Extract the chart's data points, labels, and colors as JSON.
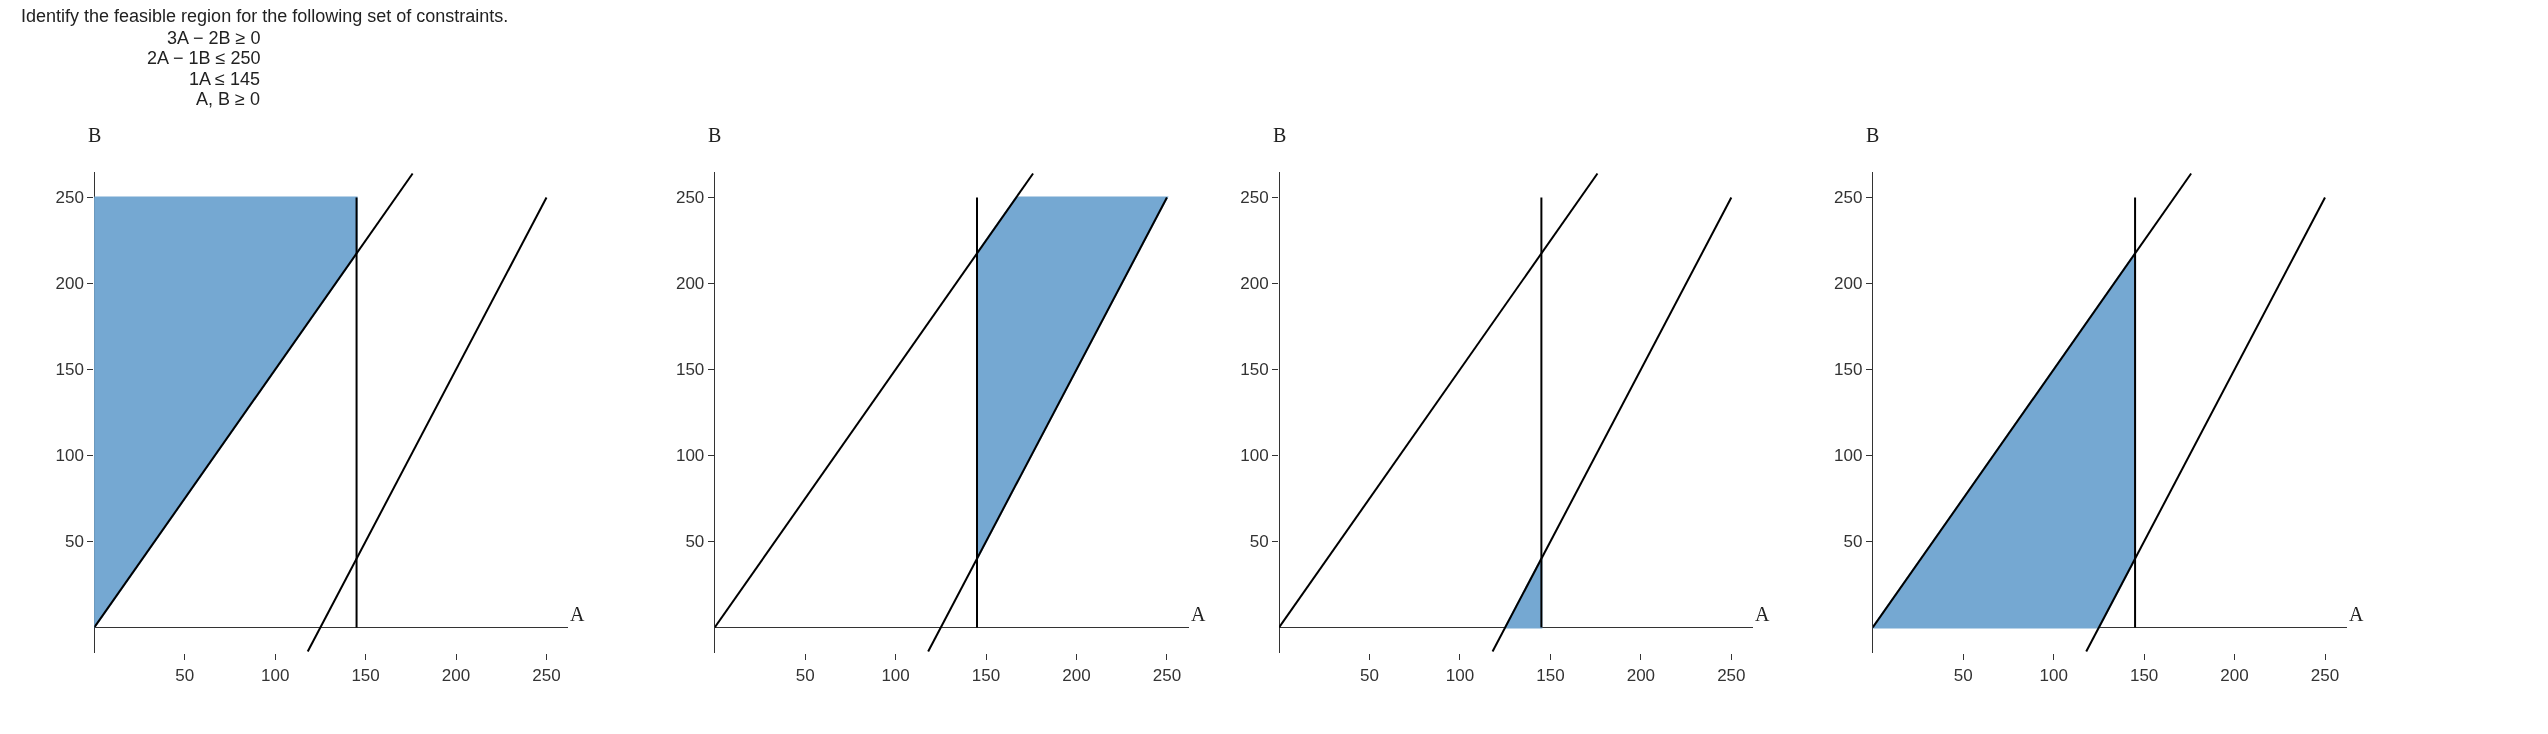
{
  "chart_data": [
    {
      "type": "other",
      "title": "Identify the feasible region for the following set of constraints.",
      "annotations": [
        "3A − 2B ≥ 0",
        "2A − 1B ≤ 250",
        "1A ≤ 145",
        "A, B ≥ 0"
      ]
    },
    {
      "type": "line",
      "xlabel": "A",
      "ylabel": "B",
      "xlim": [
        0,
        262
      ],
      "ylim": [
        -15,
        265
      ],
      "xticks": [
        50,
        100,
        150,
        200,
        250
      ],
      "yticks": [
        50,
        100,
        150,
        200,
        250
      ],
      "series": [
        {
          "type": "area",
          "color": "#75a8d2",
          "x": [
            0,
            145,
            145,
            0,
            0
          ],
          "values": [
            0,
            217.5,
            250,
            250,
            0
          ]
        },
        {
          "color": "#000000",
          "x": [
            0,
            176
          ],
          "values": [
            0,
            264
          ]
        },
        {
          "color": "#000000",
          "x": [
            118,
            250
          ],
          "values": [
            -14,
            250
          ]
        },
        {
          "color": "#000000",
          "x": [
            145,
            145
          ],
          "values": [
            0,
            250
          ]
        }
      ]
    },
    {
      "type": "line",
      "xlabel": "A",
      "ylabel": "B",
      "xlim": [
        0,
        262
      ],
      "ylim": [
        -15,
        265
      ],
      "xticks": [
        50,
        100,
        150,
        200,
        250
      ],
      "yticks": [
        50,
        100,
        150,
        200,
        250
      ],
      "series": [
        {
          "type": "area",
          "color": "#75a8d2",
          "x": [
            145,
            145,
            166.7,
            250,
            145
          ],
          "values": [
            40,
            217.5,
            250,
            250,
            40
          ]
        },
        {
          "color": "#000000",
          "x": [
            0,
            176
          ],
          "values": [
            0,
            264
          ]
        },
        {
          "color": "#000000",
          "x": [
            118,
            250
          ],
          "values": [
            -14,
            250
          ]
        },
        {
          "color": "#000000",
          "x": [
            145,
            145
          ],
          "values": [
            0,
            250
          ]
        }
      ]
    },
    {
      "type": "line",
      "xlabel": "A",
      "ylabel": "B",
      "xlim": [
        0,
        262
      ],
      "ylim": [
        -15,
        265
      ],
      "xticks": [
        50,
        100,
        150,
        200,
        250
      ],
      "yticks": [
        50,
        100,
        150,
        200,
        250
      ],
      "series": [
        {
          "type": "area",
          "color": "#75a8d2",
          "x": [
            125,
            145,
            145,
            125
          ],
          "values": [
            0,
            0,
            40,
            0
          ]
        },
        {
          "color": "#000000",
          "x": [
            0,
            176
          ],
          "values": [
            0,
            264
          ]
        },
        {
          "color": "#000000",
          "x": [
            118,
            250
          ],
          "values": [
            -14,
            250
          ]
        },
        {
          "color": "#000000",
          "x": [
            145,
            145
          ],
          "values": [
            0,
            250
          ]
        }
      ]
    },
    {
      "type": "line",
      "xlabel": "A",
      "ylabel": "B",
      "xlim": [
        0,
        262
      ],
      "ylim": [
        -15,
        265
      ],
      "xticks": [
        50,
        100,
        150,
        200,
        250
      ],
      "yticks": [
        50,
        100,
        150,
        200,
        250
      ],
      "series": [
        {
          "type": "area",
          "color": "#75a8d2",
          "x": [
            0,
            145,
            145,
            125,
            0
          ],
          "values": [
            0,
            217.5,
            40,
            0,
            0
          ]
        },
        {
          "color": "#000000",
          "x": [
            0,
            176
          ],
          "values": [
            0,
            264
          ]
        },
        {
          "color": "#000000",
          "x": [
            118,
            250
          ],
          "values": [
            -14,
            250
          ]
        },
        {
          "color": "#000000",
          "x": [
            145,
            145
          ],
          "values": [
            0,
            250
          ]
        }
      ]
    }
  ]
}
